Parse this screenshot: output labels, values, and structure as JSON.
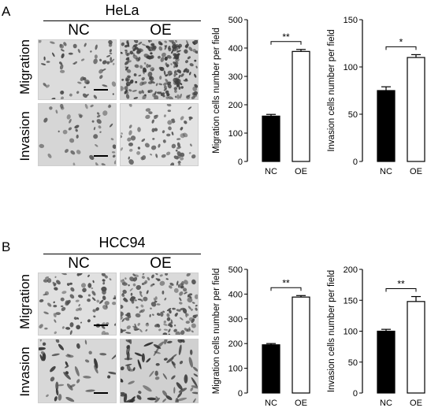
{
  "panels": [
    {
      "letter": "A",
      "cell_line": "HeLa",
      "columns": [
        "NC",
        "OE"
      ],
      "rows": [
        "Migration",
        "Invasion"
      ]
    },
    {
      "letter": "B",
      "cell_line": "HCC94",
      "columns": [
        "NC",
        "OE"
      ],
      "rows": [
        "Migration",
        "Invasion"
      ]
    }
  ],
  "chart_data": [
    {
      "type": "bar",
      "panel": "A",
      "categories": [
        "NC",
        "OE"
      ],
      "values": [
        160,
        388
      ],
      "errors": [
        6,
        7
      ],
      "fills": [
        "#000000",
        "#ffffff"
      ],
      "ylabel": "Migration cells number per field",
      "ylim": [
        0,
        500
      ],
      "yticks": [
        0,
        100,
        200,
        300,
        400,
        500
      ],
      "significance": "**"
    },
    {
      "type": "bar",
      "panel": "A",
      "categories": [
        "NC",
        "OE"
      ],
      "values": [
        75,
        110
      ],
      "errors": [
        4,
        3
      ],
      "fills": [
        "#000000",
        "#ffffff"
      ],
      "ylabel": "Invasion cells number per field",
      "ylim": [
        0,
        150
      ],
      "yticks": [
        0,
        50,
        100,
        150
      ],
      "significance": "*"
    },
    {
      "type": "bar",
      "panel": "B",
      "categories": [
        "NC",
        "OE"
      ],
      "values": [
        195,
        388
      ],
      "errors": [
        5,
        6
      ],
      "fills": [
        "#000000",
        "#ffffff"
      ],
      "ylabel": "Migration cells number per field",
      "ylim": [
        0,
        500
      ],
      "yticks": [
        0,
        100,
        200,
        300,
        400,
        500
      ],
      "significance": "**"
    },
    {
      "type": "bar",
      "panel": "B",
      "categories": [
        "NC",
        "OE"
      ],
      "values": [
        100,
        148
      ],
      "errors": [
        3,
        8
      ],
      "fills": [
        "#000000",
        "#ffffff"
      ],
      "ylabel": "Invasion cells number per field",
      "ylim": [
        0,
        200
      ],
      "yticks": [
        0,
        50,
        100,
        150,
        200
      ],
      "significance": "**"
    }
  ]
}
